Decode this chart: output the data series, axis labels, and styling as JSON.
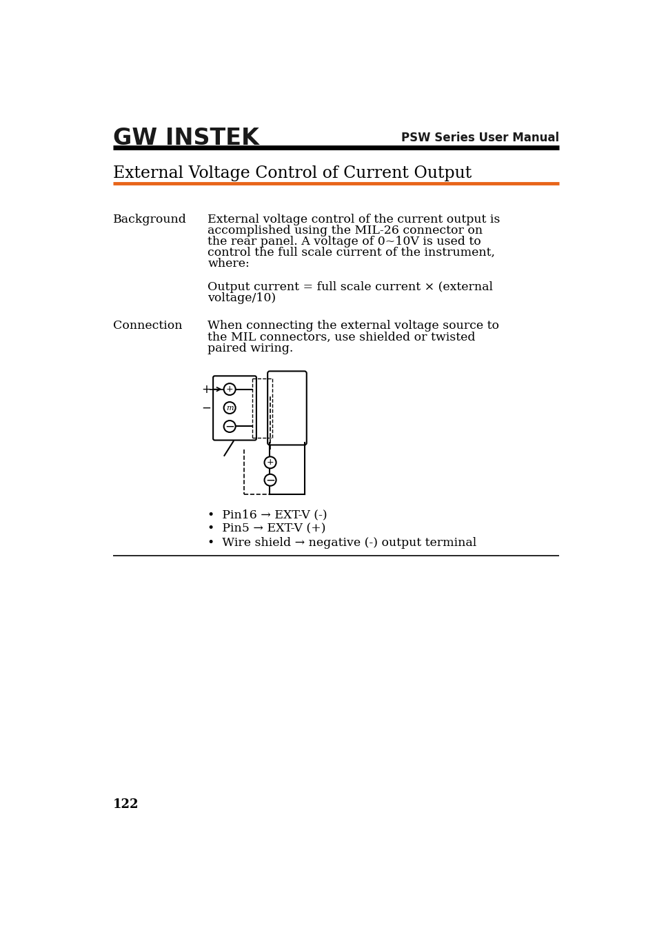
{
  "page_bg": "#ffffff",
  "header_logo_text": "GW INSTEK",
  "header_right_text": "PSW Series User Manual",
  "header_line_color": "#000000",
  "section_title": "External Voltage Control of Current Output",
  "section_title_line_color": "#e8651a",
  "label1": "Background",
  "body1_lines": [
    "External voltage control of the current output is",
    "accomplished using the MIL-26 connector on",
    "the rear panel. A voltage of 0~10V is used to",
    "control the full scale current of the instrument,",
    "where:"
  ],
  "formula_lines": [
    "Output current = full scale current × (external",
    "voltage/10)"
  ],
  "label2": "Connection",
  "body2_lines": [
    "When connecting the external voltage source to",
    "the MIL connectors, use shielded or twisted",
    "paired wiring."
  ],
  "bullet_items": [
    "Pin16 → EXT-V (-)",
    "Pin5 → EXT-V (+)",
    "Wire shield → negative (-) output terminal"
  ],
  "page_number": "122",
  "bottom_line_color": "#000000",
  "font_color": "#000000"
}
